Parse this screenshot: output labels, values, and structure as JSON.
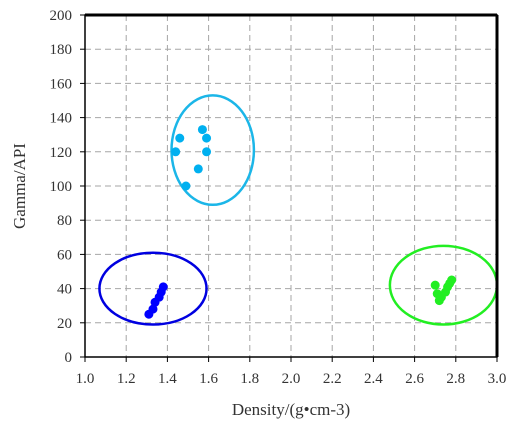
{
  "chart_data": {
    "type": "scatter",
    "title": "",
    "xlabel": "Density/(g•cm-3)",
    "ylabel": "Gamma/API",
    "xlim": [
      1.0,
      3.0
    ],
    "ylim": [
      0,
      200
    ],
    "x_ticks": [
      "1.0",
      "1.2",
      "1.4",
      "1.6",
      "1.8",
      "2.0",
      "2.2",
      "2.4",
      "2.6",
      "2.8",
      "3.0"
    ],
    "y_ticks": [
      "0",
      "20",
      "40",
      "60",
      "80",
      "100",
      "120",
      "140",
      "160",
      "180",
      "200"
    ],
    "grid": "dashed, on",
    "legend": "none",
    "series": [
      {
        "color": "#00b0f0",
        "points": [
          {
            "x": 1.46,
            "y": 128
          },
          {
            "x": 1.57,
            "y": 133
          },
          {
            "x": 1.44,
            "y": 120
          },
          {
            "x": 1.59,
            "y": 128
          },
          {
            "x": 1.59,
            "y": 120
          },
          {
            "x": 1.55,
            "y": 110
          },
          {
            "x": 1.49,
            "y": 100
          }
        ],
        "ellipse": {
          "cx": 1.62,
          "cy": 121,
          "rx": 0.2,
          "ry": 32
        },
        "ellipse_color": "#1bb6e8"
      },
      {
        "color": "#0000ff",
        "points": [
          {
            "x": 1.31,
            "y": 25
          },
          {
            "x": 1.33,
            "y": 28
          },
          {
            "x": 1.34,
            "y": 32
          },
          {
            "x": 1.36,
            "y": 35
          },
          {
            "x": 1.37,
            "y": 38
          },
          {
            "x": 1.38,
            "y": 41
          }
        ],
        "ellipse": {
          "cx": 1.33,
          "cy": 40,
          "rx": 0.26,
          "ry": 21
        },
        "ellipse_color": "#0000e0"
      },
      {
        "color": "#22ee22",
        "points": [
          {
            "x": 2.7,
            "y": 42
          },
          {
            "x": 2.71,
            "y": 37
          },
          {
            "x": 2.72,
            "y": 33
          },
          {
            "x": 2.73,
            "y": 35
          },
          {
            "x": 2.75,
            "y": 38
          },
          {
            "x": 2.76,
            "y": 41
          },
          {
            "x": 2.77,
            "y": 43
          },
          {
            "x": 2.78,
            "y": 45
          }
        ],
        "ellipse": {
          "cx": 2.74,
          "cy": 42,
          "rx": 0.26,
          "ry": 23
        },
        "ellipse_color": "#22ee22"
      }
    ]
  }
}
